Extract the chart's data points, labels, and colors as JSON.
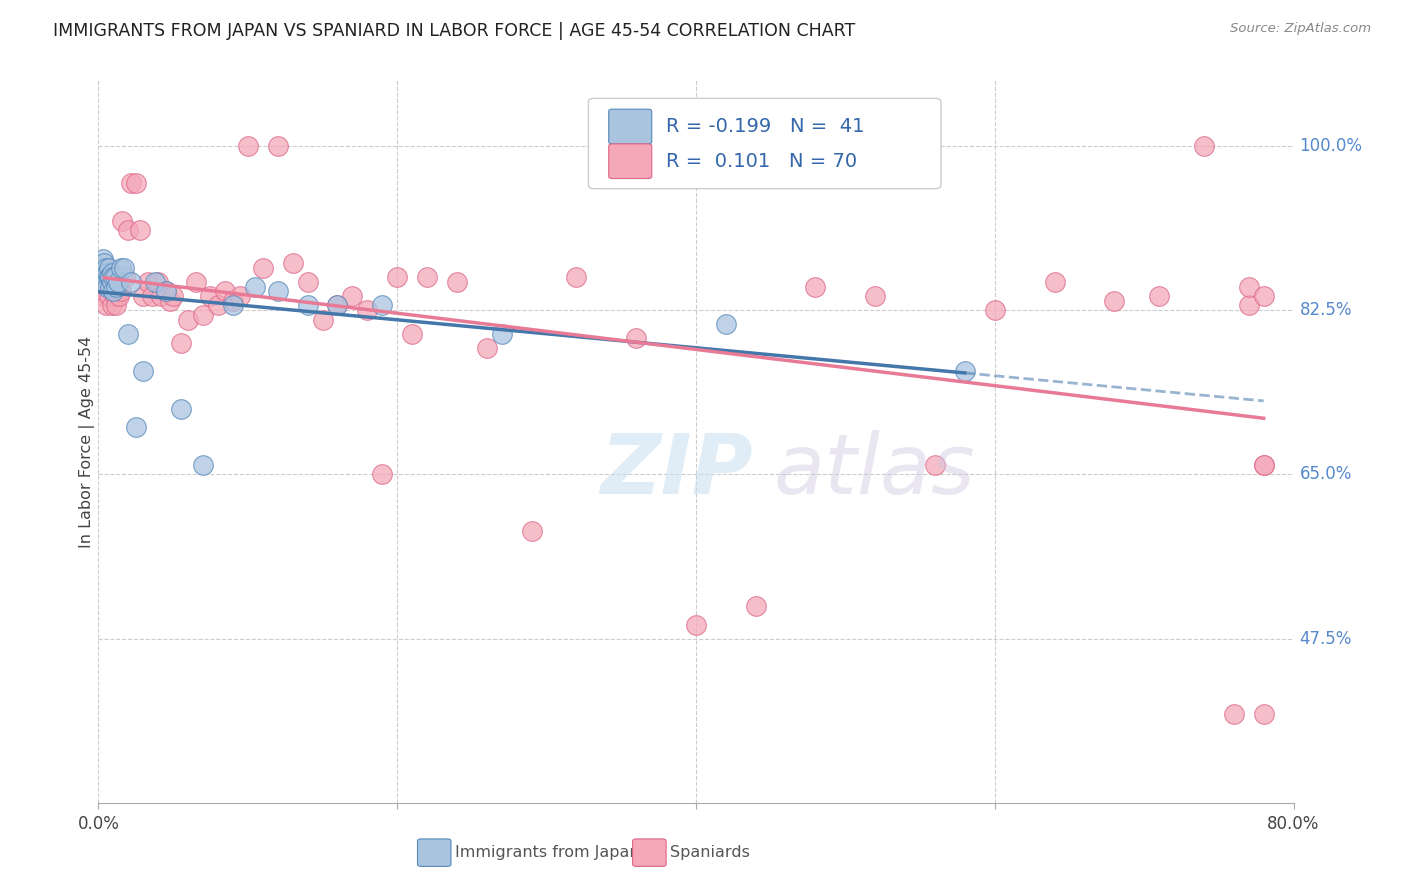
{
  "title": "IMMIGRANTS FROM JAPAN VS SPANIARD IN LABOR FORCE | AGE 45-54 CORRELATION CHART",
  "source": "Source: ZipAtlas.com",
  "ylabel": "In Labor Force | Age 45-54",
  "xlim": [
    0.0,
    0.8
  ],
  "ylim": [
    0.3,
    1.07
  ],
  "xticks": [
    0.0,
    0.2,
    0.4,
    0.6,
    0.8
  ],
  "xticklabels": [
    "0.0%",
    "",
    "",
    "",
    "80.0%"
  ],
  "ytick_positions": [
    0.475,
    0.65,
    0.825,
    1.0
  ],
  "ytick_labels": [
    "47.5%",
    "65.0%",
    "82.5%",
    "100.0%"
  ],
  "background_color": "#ffffff",
  "grid_color": "#cccccc",
  "japan_color": "#aac4e0",
  "spaniard_color": "#f4a8b8",
  "japan_edge_color": "#5588bb",
  "spaniard_edge_color": "#dd6688",
  "japan_line_color": "#4477aa",
  "spaniard_line_color": "#e87a96",
  "legend_japan_label": "Immigrants from Japan",
  "legend_spaniard_label": "Spaniards",
  "japan_R": "-0.199",
  "japan_N": "41",
  "spaniard_R": "0.101",
  "spaniard_N": "70",
  "japan_points_x": [
    0.001,
    0.002,
    0.002,
    0.003,
    0.003,
    0.004,
    0.004,
    0.005,
    0.005,
    0.006,
    0.006,
    0.007,
    0.007,
    0.008,
    0.008,
    0.009,
    0.009,
    0.01,
    0.01,
    0.011,
    0.012,
    0.013,
    0.015,
    0.017,
    0.02,
    0.022,
    0.025,
    0.03,
    0.038,
    0.045,
    0.055,
    0.07,
    0.09,
    0.105,
    0.12,
    0.14,
    0.16,
    0.19,
    0.27,
    0.42,
    0.58
  ],
  "japan_points_y": [
    0.86,
    0.87,
    0.855,
    0.88,
    0.86,
    0.875,
    0.855,
    0.87,
    0.855,
    0.865,
    0.85,
    0.87,
    0.86,
    0.86,
    0.85,
    0.865,
    0.855,
    0.845,
    0.86,
    0.86,
    0.85,
    0.855,
    0.87,
    0.87,
    0.8,
    0.855,
    0.7,
    0.76,
    0.855,
    0.845,
    0.72,
    0.66,
    0.83,
    0.85,
    0.845,
    0.83,
    0.83,
    0.83,
    0.8,
    0.81,
    0.76
  ],
  "spaniard_points_x": [
    0.004,
    0.005,
    0.006,
    0.007,
    0.008,
    0.009,
    0.01,
    0.011,
    0.012,
    0.013,
    0.014,
    0.015,
    0.016,
    0.018,
    0.02,
    0.022,
    0.025,
    0.028,
    0.03,
    0.033,
    0.036,
    0.04,
    0.042,
    0.045,
    0.048,
    0.05,
    0.055,
    0.06,
    0.065,
    0.07,
    0.075,
    0.08,
    0.085,
    0.09,
    0.095,
    0.1,
    0.11,
    0.12,
    0.13,
    0.14,
    0.15,
    0.16,
    0.17,
    0.18,
    0.19,
    0.2,
    0.21,
    0.22,
    0.24,
    0.26,
    0.29,
    0.32,
    0.36,
    0.4,
    0.44,
    0.48,
    0.52,
    0.56,
    0.6,
    0.64,
    0.68,
    0.71,
    0.74,
    0.76,
    0.77,
    0.77,
    0.78,
    0.78,
    0.78,
    0.78
  ],
  "spaniard_points_y": [
    0.84,
    0.83,
    0.85,
    0.84,
    0.855,
    0.83,
    0.85,
    0.84,
    0.83,
    0.85,
    0.84,
    0.845,
    0.92,
    0.86,
    0.91,
    0.96,
    0.96,
    0.91,
    0.84,
    0.855,
    0.84,
    0.855,
    0.84,
    0.845,
    0.835,
    0.84,
    0.79,
    0.815,
    0.855,
    0.82,
    0.84,
    0.83,
    0.845,
    0.835,
    0.84,
    1.0,
    0.87,
    1.0,
    0.875,
    0.855,
    0.815,
    0.83,
    0.84,
    0.825,
    0.65,
    0.86,
    0.8,
    0.86,
    0.855,
    0.785,
    0.59,
    0.86,
    0.795,
    0.49,
    0.51,
    0.85,
    0.84,
    0.66,
    0.825,
    0.855,
    0.835,
    0.84,
    1.0,
    0.395,
    0.83,
    0.85,
    0.84,
    0.66,
    0.66,
    0.395
  ]
}
